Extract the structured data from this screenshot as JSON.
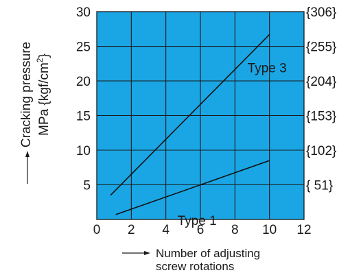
{
  "chart_data": {
    "type": "line",
    "ylabel_line1": "Cracking pressure",
    "ylabel_line2": "MPa {kgf/cm",
    "ylabel_sup": "2",
    "ylabel_close": "}",
    "xlabel_line1": "Number of adjusting",
    "xlabel_line2": "screw rotations",
    "xlim": [
      0,
      12
    ],
    "ylim": [
      0,
      30
    ],
    "x_ticks": [
      "0",
      "2",
      "4",
      "6",
      "8",
      "10",
      "12"
    ],
    "y_ticks": [
      "5",
      "10",
      "15",
      "20",
      "25",
      "30"
    ],
    "y_ticks_right": [
      "{ 51}",
      "{102}",
      "{153}",
      "{204}",
      "{255}",
      "{306}"
    ],
    "grid": true,
    "plot_background": "#1aa6e4",
    "line_color": "#111111",
    "series": [
      {
        "name": "Type 3",
        "x": [
          0.8,
          10
        ],
        "y": [
          3.5,
          26.7
        ]
      },
      {
        "name": "Type 1",
        "x": [
          1.1,
          10
        ],
        "y": [
          0.7,
          8.5
        ]
      }
    ]
  }
}
